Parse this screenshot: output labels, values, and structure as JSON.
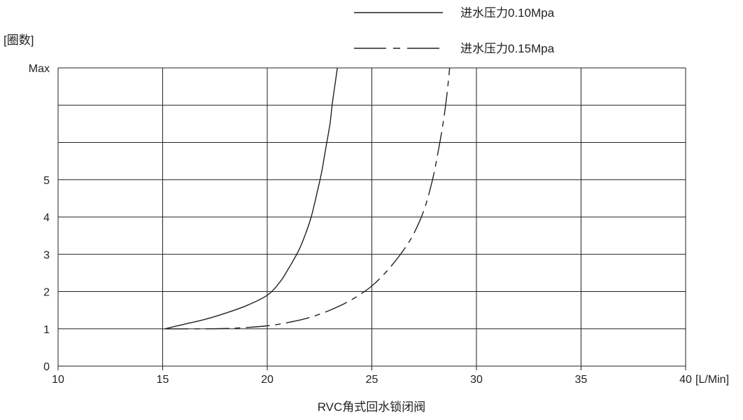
{
  "chart_data": {
    "type": "line",
    "ylabel": "[圈数]",
    "xunit": "[L/Min]",
    "caption": "RVC角式回水锁闭阀",
    "xlim": [
      10,
      40
    ],
    "xticks": [
      10,
      15,
      20,
      25,
      30,
      35,
      40
    ],
    "yticks": [
      {
        "value": 0,
        "label": "0"
      },
      {
        "value": 1,
        "label": "1"
      },
      {
        "value": 2,
        "label": "2"
      },
      {
        "value": 3,
        "label": "3"
      },
      {
        "value": 4,
        "label": "4"
      },
      {
        "value": 5,
        "label": "5"
      },
      {
        "value": 8,
        "label": "Max"
      }
    ],
    "ylim": [
      0,
      8
    ],
    "grid": true,
    "legend_position": "top-right",
    "series": [
      {
        "name": "进水压力0.10Mpa",
        "style": "solid",
        "color": "#222222",
        "points": [
          [
            15.1,
            1.0
          ],
          [
            16.0,
            1.12
          ],
          [
            17.0,
            1.25
          ],
          [
            18.0,
            1.42
          ],
          [
            19.0,
            1.62
          ],
          [
            20.0,
            1.9
          ],
          [
            20.6,
            2.25
          ],
          [
            21.0,
            2.6
          ],
          [
            21.5,
            3.1
          ],
          [
            21.8,
            3.5
          ],
          [
            22.1,
            4.0
          ],
          [
            22.4,
            4.7
          ],
          [
            22.6,
            5.2
          ],
          [
            22.8,
            5.85
          ],
          [
            23.0,
            6.5
          ],
          [
            23.1,
            7.0
          ],
          [
            23.25,
            7.6
          ],
          [
            23.35,
            8.0
          ]
        ]
      },
      {
        "name": "进水压力0.15Mpa",
        "style": "dashdot",
        "color": "#222222",
        "points": [
          [
            15.1,
            1.0
          ],
          [
            17.0,
            1.0
          ],
          [
            18.5,
            1.02
          ],
          [
            20.0,
            1.08
          ],
          [
            21.0,
            1.17
          ],
          [
            22.0,
            1.3
          ],
          [
            23.0,
            1.5
          ],
          [
            24.0,
            1.77
          ],
          [
            25.0,
            2.15
          ],
          [
            25.8,
            2.6
          ],
          [
            26.5,
            3.1
          ],
          [
            27.0,
            3.55
          ],
          [
            27.5,
            4.2
          ],
          [
            27.9,
            5.0
          ],
          [
            28.2,
            5.85
          ],
          [
            28.4,
            6.5
          ],
          [
            28.55,
            7.1
          ],
          [
            28.65,
            7.6
          ],
          [
            28.72,
            8.0
          ]
        ]
      }
    ]
  }
}
